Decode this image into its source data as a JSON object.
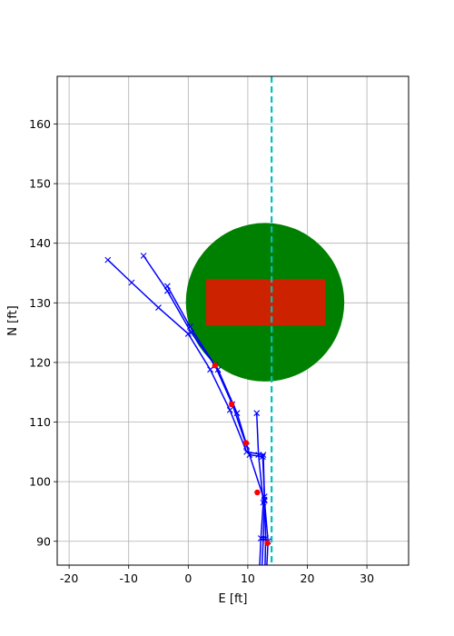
{
  "chart_data": {
    "type": "line",
    "xlabel": "E [ft]",
    "ylabel": "N [ft]",
    "xlim": [
      -22,
      37
    ],
    "ylim": [
      86,
      168
    ],
    "grid": true,
    "xticks": [
      -20,
      -10,
      0,
      10,
      20,
      30
    ],
    "yticks": [
      90,
      100,
      110,
      120,
      130,
      140,
      150,
      160
    ],
    "colors": {
      "trajectory": "#0000ff",
      "marker": "#ff0000",
      "circle": "#008000",
      "rectangle": "#cc2200",
      "vline": "#00bfbf",
      "grid": "#b0b0b0"
    },
    "circle": {
      "center": [
        12.9,
        130.1
      ],
      "radius": 13.3
    },
    "rectangle": {
      "x0": 3.0,
      "x1": 23.0,
      "y0": 126.2,
      "y1": 134.0
    },
    "vline_x": 14.0,
    "trajectories": [
      [
        [
          12.0,
          86
        ],
        [
          12.2,
          90.5
        ],
        [
          12.6,
          96.5
        ],
        [
          11.8,
          104.5
        ],
        [
          11.5,
          111.5
        ]
      ],
      [
        [
          12.4,
          86
        ],
        [
          12.6,
          90.5
        ],
        [
          12.8,
          97.0
        ],
        [
          12.6,
          104.5
        ],
        [
          9.8,
          105.0
        ],
        [
          7.0,
          112.0
        ],
        [
          3.7,
          118.8
        ],
        [
          0.0,
          124.8
        ],
        [
          -5.0,
          129.2
        ],
        [
          -9.5,
          133.4
        ],
        [
          -13.5,
          137.2
        ]
      ],
      [
        [
          12.9,
          86
        ],
        [
          13.0,
          90.5
        ],
        [
          12.8,
          97.5
        ],
        [
          12.5,
          104.2
        ],
        [
          10.3,
          104.5
        ],
        [
          8.2,
          111.5
        ],
        [
          5.0,
          118.8
        ],
        [
          0.5,
          125.0
        ],
        [
          -3.5,
          132.0
        ],
        [
          -7.5,
          137.9
        ]
      ],
      [
        [
          13.2,
          86
        ],
        [
          13.4,
          90.0
        ],
        [
          12.8,
          96.8
        ],
        [
          9.8,
          106.0
        ],
        [
          7.4,
          113.0
        ],
        [
          4.5,
          119.5
        ],
        [
          0.3,
          126.0
        ],
        [
          -3.5,
          132.8
        ]
      ]
    ],
    "markers": [
      [
        13.3,
        89.7
      ],
      [
        11.6,
        98.2
      ],
      [
        9.7,
        106.5
      ],
      [
        7.3,
        113.0
      ],
      [
        4.5,
        119.5
      ]
    ]
  }
}
